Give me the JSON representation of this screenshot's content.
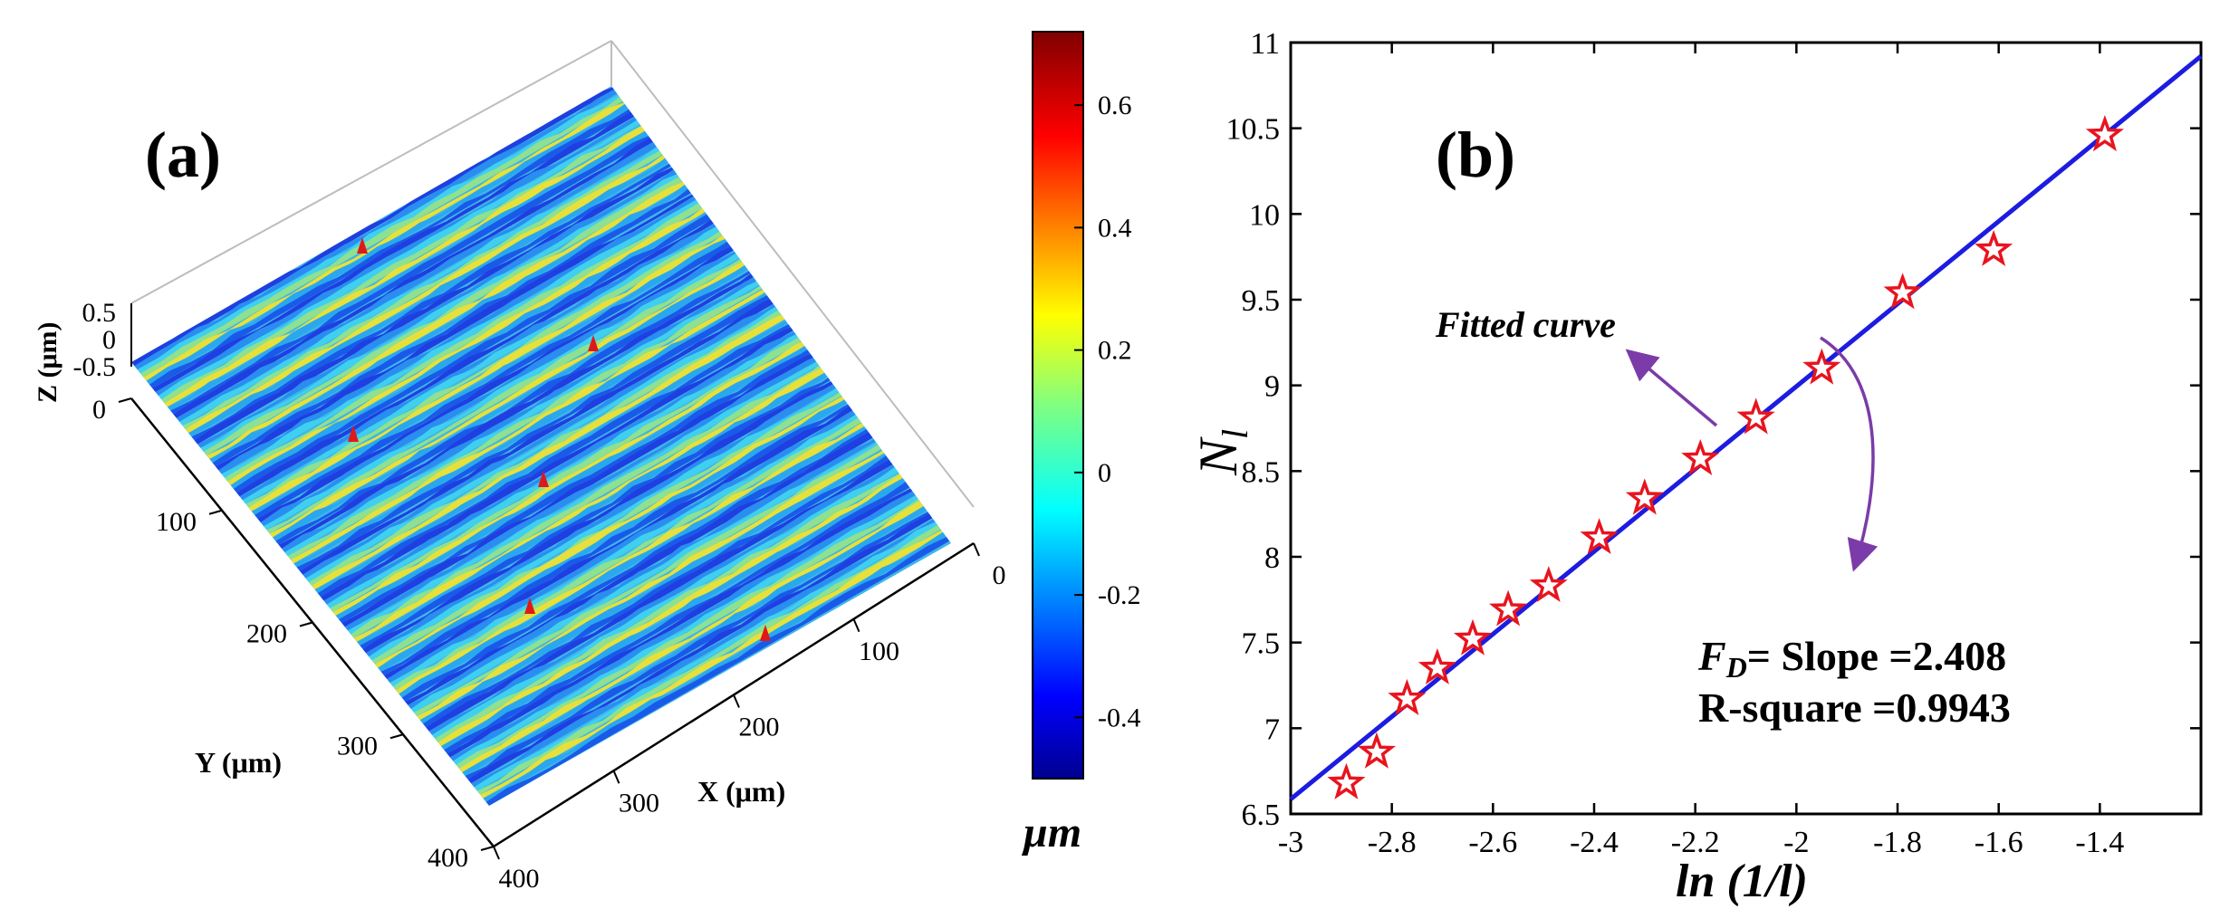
{
  "chart_data": [
    {
      "type": "surface3d",
      "panel_label": "(a)",
      "xlabel": "X (μm)",
      "ylabel": "Y (μm)",
      "zlabel": "Z (μm)",
      "x_ticks": [
        "0",
        "100",
        "200",
        "300",
        "400"
      ],
      "y_ticks": [
        "0",
        "100",
        "200",
        "300",
        "400"
      ],
      "z_ticks": [
        "0.5",
        "0",
        "-0.5"
      ],
      "xlim": [
        0,
        400
      ],
      "ylim": [
        0,
        400
      ],
      "zlim": [
        -0.5,
        0.5
      ],
      "colorbar": {
        "label": "μm",
        "range": [
          -0.5,
          0.72
        ],
        "ticks": [
          0.6,
          0.4,
          0.2,
          0,
          -0.2,
          -0.4
        ],
        "tick_labels": [
          "0.6",
          "0.4",
          "0.2",
          "0",
          "-0.2",
          "-0.4"
        ],
        "colormap": "jet"
      },
      "ridge_count": 17
    },
    {
      "type": "scatter",
      "panel_label": "(b)",
      "xlabel": "ln (1/l)",
      "ylabel_main": "N",
      "ylabel_sub": "l",
      "xlim": [
        -3,
        -1.2
      ],
      "ylim": [
        6.5,
        11
      ],
      "x_ticks": [
        -3,
        -2.8,
        -2.6,
        -2.4,
        -2.2,
        -2,
        -1.8,
        -1.6,
        -1.4
      ],
      "x_tick_labels": [
        "-3",
        "-2.8",
        "-2.6",
        "-2.4",
        "-2.2",
        "-2",
        "-1.8",
        "-1.6",
        "-1.4"
      ],
      "y_ticks": [
        6.5,
        7,
        7.5,
        8,
        8.5,
        9,
        9.5,
        10,
        10.5,
        11
      ],
      "y_tick_labels": [
        "6.5",
        "7",
        "7.5",
        "8",
        "8.5",
        "9",
        "9.5",
        "10",
        "10.5",
        "11"
      ],
      "points": {
        "x": [
          -2.89,
          -2.83,
          -2.77,
          -2.71,
          -2.64,
          -2.57,
          -2.49,
          -2.39,
          -2.3,
          -2.19,
          -2.08,
          -1.95,
          -1.79,
          -1.61,
          -1.39
        ],
        "y": [
          6.68,
          6.86,
          7.17,
          7.35,
          7.52,
          7.69,
          7.83,
          8.11,
          8.34,
          8.57,
          8.81,
          9.1,
          9.54,
          9.79,
          10.46
        ]
      },
      "fit_line": {
        "slope": 2.408,
        "intercept": 13.81,
        "x": [
          -3,
          -1.2
        ]
      },
      "fit_annotation": "Fitted curve",
      "fd_label": "F",
      "fd_sub": "D",
      "fd_text": "= Slope =2.408",
      "r_square_text": "R-square =0.9943",
      "marker_color": "#e8141e",
      "line_color": "#1c1ce0",
      "arrow_color": "#7b3ba8"
    }
  ]
}
